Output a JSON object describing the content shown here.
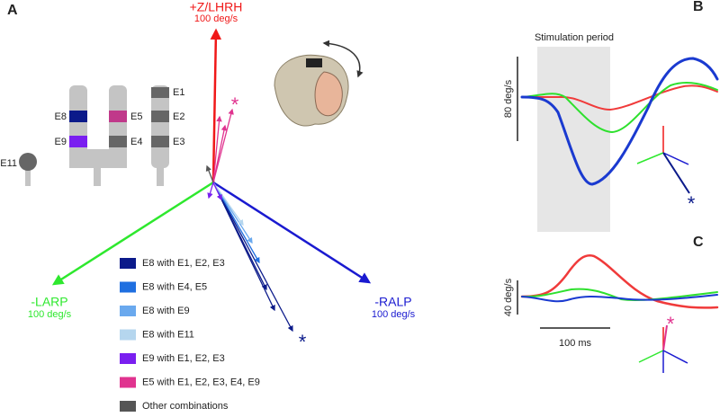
{
  "panels": {
    "a": "A",
    "b": "B",
    "c": "C"
  },
  "vectors": {
    "up": {
      "label": "+Z/LHRH",
      "scale": "100 deg/s"
    },
    "left": {
      "label": "-LARP",
      "scale": "100 deg/s"
    },
    "right": {
      "label": "-RALP",
      "scale": "100 deg/s"
    }
  },
  "electrodes": {
    "e1": "E1",
    "e2": "E2",
    "e3": "E3",
    "e4": "E4",
    "e5": "E5",
    "e8": "E8",
    "e9": "E9",
    "e11": "E11"
  },
  "asterisk": "*",
  "legend": [
    {
      "label": "E8 with E1, E2, E3",
      "color": "#0b1a8a"
    },
    {
      "label": "E8 with E4, E5",
      "color": "#1f6fe0"
    },
    {
      "label": "E8 with E9",
      "color": "#6aa9ee"
    },
    {
      "label": "E8 with E11",
      "color": "#b5d6ee"
    },
    {
      "label": "E9 with E1, E2, E3",
      "color": "#7a1ff0"
    },
    {
      "label": "E5 with E1, E2, E3, E4, E9",
      "color": "#e0338f"
    },
    {
      "label": "Other combinations",
      "color": "#555555"
    }
  ],
  "panel_b": {
    "period": "Stimulation period",
    "scale": "80 deg/s"
  },
  "panel_c": {
    "scale": "40 deg/s",
    "time": "100 ms"
  }
}
